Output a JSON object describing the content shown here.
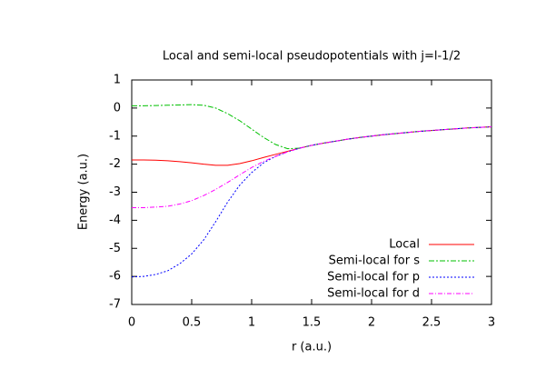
{
  "chart_data": {
    "type": "line",
    "title": "Local and semi-local pseudopotentials with j=l-1/2",
    "xlabel": "r (a.u.)",
    "ylabel": "Energy (a.u.)",
    "x": [
      0,
      0.1,
      0.2,
      0.3,
      0.4,
      0.5,
      0.6,
      0.7,
      0.8,
      0.9,
      1.0,
      1.1,
      1.2,
      1.3,
      1.4,
      1.5,
      1.6,
      1.7,
      1.8,
      1.9,
      2.0,
      2.1,
      2.2,
      2.3,
      2.4,
      2.5,
      2.6,
      2.7,
      2.8,
      2.9,
      3.0
    ],
    "series": [
      {
        "name": "Local",
        "color": "#ff0000",
        "values": [
          -1.85,
          -1.85,
          -1.86,
          -1.88,
          -1.91,
          -1.95,
          -2.0,
          -2.04,
          -2.04,
          -1.98,
          -1.88,
          -1.76,
          -1.65,
          -1.54,
          -1.43,
          -1.33,
          -1.25,
          -1.18,
          -1.11,
          -1.05,
          -1.0,
          -0.95,
          -0.91,
          -0.87,
          -0.83,
          -0.8,
          -0.77,
          -0.74,
          -0.71,
          -0.69,
          -0.67
        ]
      },
      {
        "name": "Semi-local for s",
        "color": "#00c000",
        "values": [
          0.08,
          0.08,
          0.09,
          0.1,
          0.11,
          0.12,
          0.1,
          0.0,
          -0.2,
          -0.45,
          -0.75,
          -1.05,
          -1.3,
          -1.45,
          -1.43,
          -1.33,
          -1.25,
          -1.18,
          -1.11,
          -1.05,
          -1.0,
          -0.95,
          -0.91,
          -0.87,
          -0.83,
          -0.8,
          -0.77,
          -0.74,
          -0.71,
          -0.69,
          -0.67
        ]
      },
      {
        "name": "Semi-local for p",
        "color": "#0000ff",
        "values": [
          -6.02,
          -6.0,
          -5.93,
          -5.8,
          -5.55,
          -5.2,
          -4.7,
          -4.05,
          -3.35,
          -2.75,
          -2.3,
          -1.95,
          -1.72,
          -1.56,
          -1.43,
          -1.33,
          -1.25,
          -1.18,
          -1.11,
          -1.05,
          -1.0,
          -0.95,
          -0.91,
          -0.87,
          -0.83,
          -0.8,
          -0.77,
          -0.74,
          -0.71,
          -0.69,
          -0.67
        ]
      },
      {
        "name": "Semi-local for d",
        "color": "#ff00ff",
        "values": [
          -3.55,
          -3.55,
          -3.53,
          -3.5,
          -3.42,
          -3.3,
          -3.12,
          -2.9,
          -2.65,
          -2.38,
          -2.12,
          -1.9,
          -1.72,
          -1.56,
          -1.43,
          -1.33,
          -1.25,
          -1.18,
          -1.11,
          -1.05,
          -1.0,
          -0.95,
          -0.91,
          -0.87,
          -0.83,
          -0.8,
          -0.77,
          -0.74,
          -0.71,
          -0.69,
          -0.67
        ]
      }
    ],
    "xlim": [
      0,
      3
    ],
    "xticks": [
      0,
      0.5,
      1,
      1.5,
      2,
      2.5,
      3
    ],
    "ylim": [
      -7,
      1
    ],
    "yticks": [
      -7,
      -6,
      -5,
      -4,
      -3,
      -2,
      -1,
      0,
      1
    ],
    "grid": false,
    "legend": "bottom-right"
  }
}
